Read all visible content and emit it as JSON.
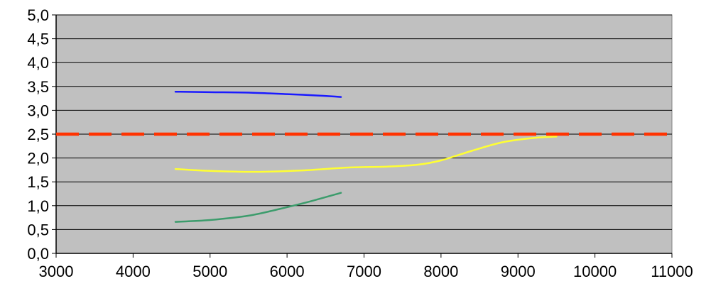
{
  "chart_data": {
    "type": "line",
    "title": "",
    "xlabel": "",
    "ylabel": "",
    "xlim": [
      3000,
      11000
    ],
    "ylim": [
      0,
      5
    ],
    "x_ticks": [
      3000,
      4000,
      5000,
      6000,
      7000,
      8000,
      9000,
      10000,
      11000
    ],
    "x_tick_labels": [
      "3000",
      "4000",
      "5000",
      "6000",
      "7000",
      "8000",
      "9000",
      "10000",
      "11000"
    ],
    "y_ticks": [
      0,
      0.5,
      1,
      1.5,
      2,
      2.5,
      3,
      3.5,
      4,
      4.5,
      5
    ],
    "y_tick_labels": [
      "0,0",
      "0,5",
      "1,0",
      "1,5",
      "2,0",
      "2,5",
      "3,0",
      "3,5",
      "4,0",
      "4,5",
      "5,0"
    ],
    "grid": "horizontal",
    "plot_background": "#c0c0c0",
    "legend": "none",
    "series": [
      {
        "color": "#1a1aff",
        "style": "solid",
        "points": [
          [
            4550,
            3.39
          ],
          [
            5000,
            3.38
          ],
          [
            5500,
            3.37
          ],
          [
            6000,
            3.34
          ],
          [
            6400,
            3.31
          ],
          [
            6700,
            3.28
          ]
        ]
      },
      {
        "color": "#ffff33",
        "style": "solid",
        "points": [
          [
            4550,
            1.77
          ],
          [
            5000,
            1.73
          ],
          [
            5600,
            1.71
          ],
          [
            6200,
            1.74
          ],
          [
            6800,
            1.8
          ],
          [
            7300,
            1.82
          ],
          [
            7700,
            1.86
          ],
          [
            8000,
            1.95
          ],
          [
            8400,
            2.15
          ],
          [
            8800,
            2.33
          ],
          [
            9200,
            2.42
          ],
          [
            9500,
            2.45
          ]
        ]
      },
      {
        "color": "#3c9c6c",
        "style": "solid",
        "points": [
          [
            4550,
            0.66
          ],
          [
            5000,
            0.7
          ],
          [
            5500,
            0.79
          ],
          [
            5900,
            0.93
          ],
          [
            6300,
            1.09
          ],
          [
            6700,
            1.27
          ]
        ]
      },
      {
        "color": "#ff3300",
        "style": "dashed",
        "points": [
          [
            3000,
            2.5
          ],
          [
            11000,
            2.5
          ]
        ]
      }
    ]
  }
}
